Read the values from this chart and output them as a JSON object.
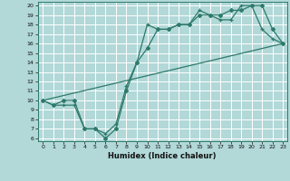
{
  "xlabel": "Humidex (Indice chaleur)",
  "bg_color": "#b2d8d8",
  "grid_color": "#ffffff",
  "line_color": "#2d7a6a",
  "xticks": [
    0,
    1,
    2,
    3,
    4,
    5,
    6,
    7,
    8,
    9,
    10,
    11,
    12,
    13,
    14,
    15,
    16,
    17,
    18,
    19,
    20,
    21,
    22,
    23
  ],
  "yticks": [
    6,
    7,
    8,
    9,
    10,
    11,
    12,
    13,
    14,
    15,
    16,
    17,
    18,
    19,
    20
  ],
  "xlim": [
    -0.5,
    23.4
  ],
  "ylim": [
    5.7,
    20.4
  ],
  "line1_x": [
    0,
    1,
    2,
    3,
    4,
    5,
    6,
    7,
    8,
    9,
    10,
    11,
    12,
    13,
    14,
    15,
    16,
    17,
    18,
    19,
    20,
    21,
    22,
    23
  ],
  "line1_y": [
    10,
    9.5,
    9.5,
    9.5,
    7,
    7,
    6.5,
    7.5,
    11.5,
    14,
    18,
    17.5,
    17.5,
    18,
    18,
    19.5,
    19,
    18.5,
    18.5,
    20,
    20,
    17.5,
    16.5,
    16
  ],
  "line2_x": [
    0,
    1,
    2,
    3,
    4,
    5,
    6,
    7,
    8,
    9,
    10,
    11,
    12,
    13,
    14,
    15,
    16,
    17,
    18,
    19,
    20,
    21,
    22,
    23
  ],
  "line2_y": [
    10,
    9.5,
    10,
    10,
    7,
    7,
    6,
    7,
    11,
    14,
    15.5,
    17.5,
    17.5,
    18,
    18,
    19,
    19,
    19,
    19.5,
    19.5,
    20,
    20,
    17.5,
    16
  ],
  "line3_x": [
    0,
    23
  ],
  "line3_y": [
    10,
    16
  ]
}
